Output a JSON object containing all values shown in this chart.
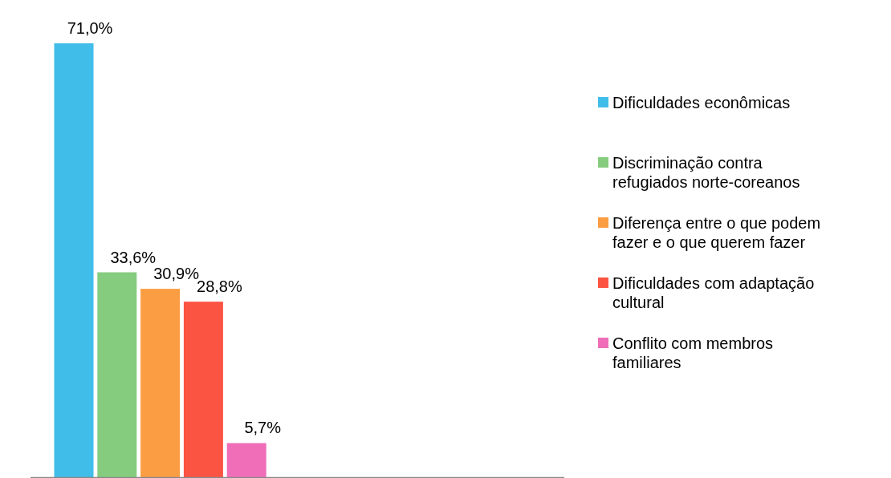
{
  "chart_data": {
    "type": "bar",
    "categories": [
      null
    ],
    "legend": "right",
    "series": [
      {
        "name": "Dificuldades econômicas",
        "color": "#41bdea",
        "values": [
          71.0
        ],
        "value_labels": [
          "71,0%"
        ]
      },
      {
        "name": "Discriminação contra refugiados norte-coreanos",
        "color": "#86cc7f",
        "values": [
          33.6
        ],
        "value_labels": [
          "33,6%"
        ]
      },
      {
        "name": "Diferença entre o que podem fazer e o que querem fazer",
        "color": "#fb9d42",
        "values": [
          30.9
        ],
        "value_labels": [
          "30,9%"
        ]
      },
      {
        "name": "Dificuldades com adaptação cultural",
        "color": "#fc5443",
        "values": [
          28.8
        ],
        "value_labels": [
          "28,8%"
        ]
      },
      {
        "name": "Conflito com membros familiares",
        "color": "#f06eb8",
        "values": [
          5.7
        ],
        "value_labels": [
          "5,7%"
        ]
      }
    ]
  }
}
